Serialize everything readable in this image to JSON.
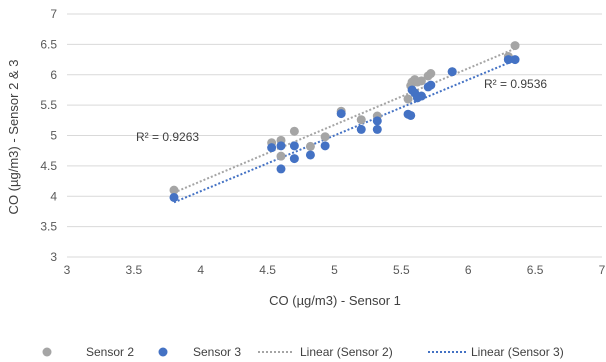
{
  "chart_data": {
    "type": "scatter",
    "xlabel": "CO (µg/m3) - Sensor 1",
    "ylabel": "CO (µg/m3) - Sensor 2 & 3",
    "xlim": [
      3,
      7
    ],
    "ylim": [
      3,
      7
    ],
    "xticks": [
      "3",
      "3.5",
      "4",
      "4.5",
      "5",
      "5.5",
      "6",
      "6.5",
      "7"
    ],
    "yticks": [
      "3",
      "3.5",
      "4",
      "4.5",
      "5",
      "5.5",
      "6",
      "6.5",
      "7"
    ],
    "grid": "horizontal",
    "legend_position": "bottom",
    "series": [
      {
        "name": "Sensor 2",
        "color": "#a5a5a5",
        "points": [
          [
            3.8,
            4.1
          ],
          [
            4.53,
            4.88
          ],
          [
            4.6,
            4.92
          ],
          [
            4.6,
            4.66
          ],
          [
            4.7,
            5.07
          ],
          [
            4.82,
            4.82
          ],
          [
            4.93,
            4.98
          ],
          [
            5.05,
            5.4
          ],
          [
            5.2,
            5.26
          ],
          [
            5.32,
            5.32
          ],
          [
            5.55,
            5.6
          ],
          [
            5.57,
            5.82
          ],
          [
            5.58,
            5.88
          ],
          [
            5.6,
            5.92
          ],
          [
            5.62,
            5.88
          ],
          [
            5.65,
            5.9
          ],
          [
            5.7,
            5.98
          ],
          [
            5.72,
            6.02
          ],
          [
            5.88,
            6.05
          ],
          [
            6.3,
            6.3
          ],
          [
            6.35,
            6.48
          ]
        ]
      },
      {
        "name": "Sensor 3",
        "color": "#4472c4",
        "points": [
          [
            3.8,
            3.98
          ],
          [
            4.53,
            4.8
          ],
          [
            4.6,
            4.45
          ],
          [
            4.6,
            4.83
          ],
          [
            4.7,
            4.62
          ],
          [
            4.7,
            4.83
          ],
          [
            4.82,
            4.68
          ],
          [
            4.93,
            4.83
          ],
          [
            5.05,
            5.36
          ],
          [
            5.2,
            5.1
          ],
          [
            5.32,
            5.1
          ],
          [
            5.32,
            5.24
          ],
          [
            5.55,
            5.35
          ],
          [
            5.57,
            5.33
          ],
          [
            5.58,
            5.75
          ],
          [
            5.6,
            5.7
          ],
          [
            5.62,
            5.62
          ],
          [
            5.65,
            5.65
          ],
          [
            5.7,
            5.8
          ],
          [
            5.72,
            5.83
          ],
          [
            5.88,
            6.05
          ],
          [
            6.3,
            6.25
          ],
          [
            6.35,
            6.25
          ]
        ]
      }
    ],
    "trendlines": [
      {
        "name": "Linear (Sensor 2)",
        "color": "#a5a5a5",
        "x": [
          3.8,
          6.35
        ],
        "y": [
          4.06,
          6.43
        ],
        "r2_label": "R² = 0.9263"
      },
      {
        "name": "Linear (Sensor 3)",
        "color": "#4472c4",
        "x": [
          3.8,
          6.35
        ],
        "y": [
          3.9,
          6.24
        ],
        "r2_label": "R² = 0.9536"
      }
    ]
  }
}
